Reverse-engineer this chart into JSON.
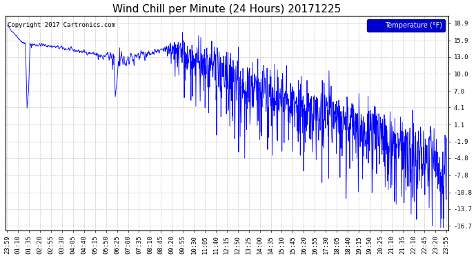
{
  "title": "Wind Chill per Minute (24 Hours) 20171225",
  "copyright_text": "Copyright 2017 Cartronics.com",
  "legend_label": "Temperature (°F)",
  "legend_bg": "#0000cc",
  "legend_text_color": "#ffffff",
  "line_color": "#0000ff",
  "bg_color": "#ffffff",
  "plot_bg_color": "#ffffff",
  "grid_color": "#c8c8c8",
  "yticks": [
    18.9,
    15.9,
    13.0,
    10.0,
    7.0,
    4.1,
    1.1,
    -1.9,
    -4.8,
    -7.8,
    -10.8,
    -13.7,
    -16.7
  ],
  "ylim": [
    -17.5,
    20.2
  ],
  "x_labels": [
    "23:59",
    "01:10",
    "01:35",
    "02:20",
    "02:55",
    "03:30",
    "04:05",
    "04:40",
    "05:15",
    "05:50",
    "06:25",
    "07:00",
    "07:35",
    "08:10",
    "08:45",
    "09:20",
    "09:55",
    "10:30",
    "11:05",
    "11:40",
    "12:15",
    "12:50",
    "13:25",
    "14:00",
    "14:35",
    "15:10",
    "15:45",
    "16:20",
    "16:55",
    "17:30",
    "18:05",
    "18:40",
    "19:15",
    "19:50",
    "20:25",
    "21:10",
    "21:35",
    "22:10",
    "22:45",
    "23:20",
    "23:55"
  ],
  "title_fontsize": 11,
  "axis_fontsize": 6.5,
  "copyright_fontsize": 6.5,
  "figsize": [
    6.9,
    3.75
  ],
  "dpi": 100
}
